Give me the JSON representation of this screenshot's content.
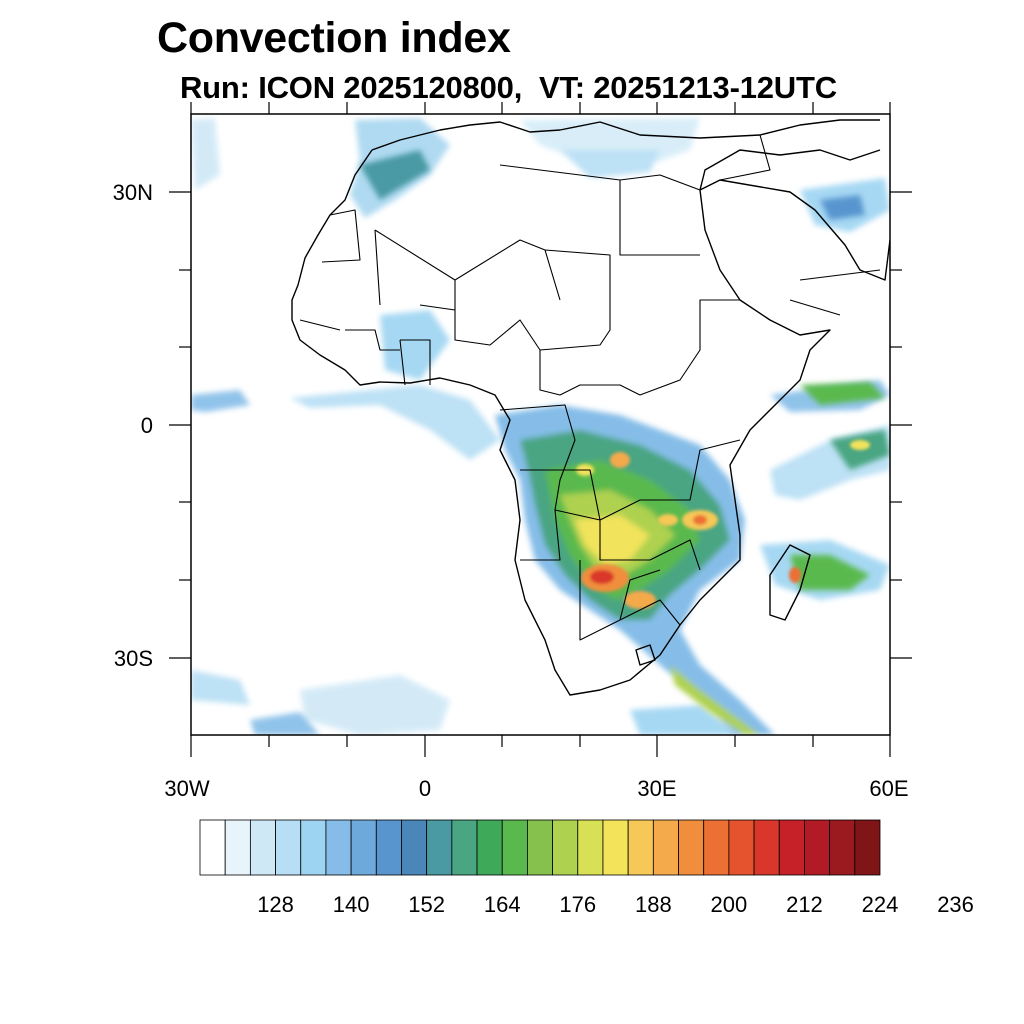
{
  "title": "Convection index",
  "subtitle": "Run: ICON 2025120800,  VT: 20251213-12UTC",
  "map": {
    "region": "Africa",
    "lon_range": [
      -30,
      60
    ],
    "lat_range": [
      -40,
      40
    ],
    "x_tick_labels": [
      "30W",
      "0",
      "30E",
      "60E"
    ],
    "y_tick_labels": [
      "30N",
      "0",
      "30S"
    ]
  },
  "colorbar": {
    "colors": [
      "#ffffff",
      "#e8f4fb",
      "#cfe8f6",
      "#b6def4",
      "#9dd4f2",
      "#85bde8",
      "#6ea9dc",
      "#5895cf",
      "#4a86b8",
      "#4a9aa4",
      "#4aa582",
      "#3fa95a",
      "#5ab94d",
      "#86c04d",
      "#aed14f",
      "#d8e055",
      "#f2e35b",
      "#f6c857",
      "#f4a94b",
      "#f18e3e",
      "#ec7034",
      "#e4532e",
      "#d9372b",
      "#c62128",
      "#b21a25",
      "#9b1a1f",
      "#7f1517"
    ],
    "labels": [
      "128",
      "140",
      "152",
      "164",
      "176",
      "188",
      "200",
      "212",
      "224",
      "236"
    ]
  }
}
